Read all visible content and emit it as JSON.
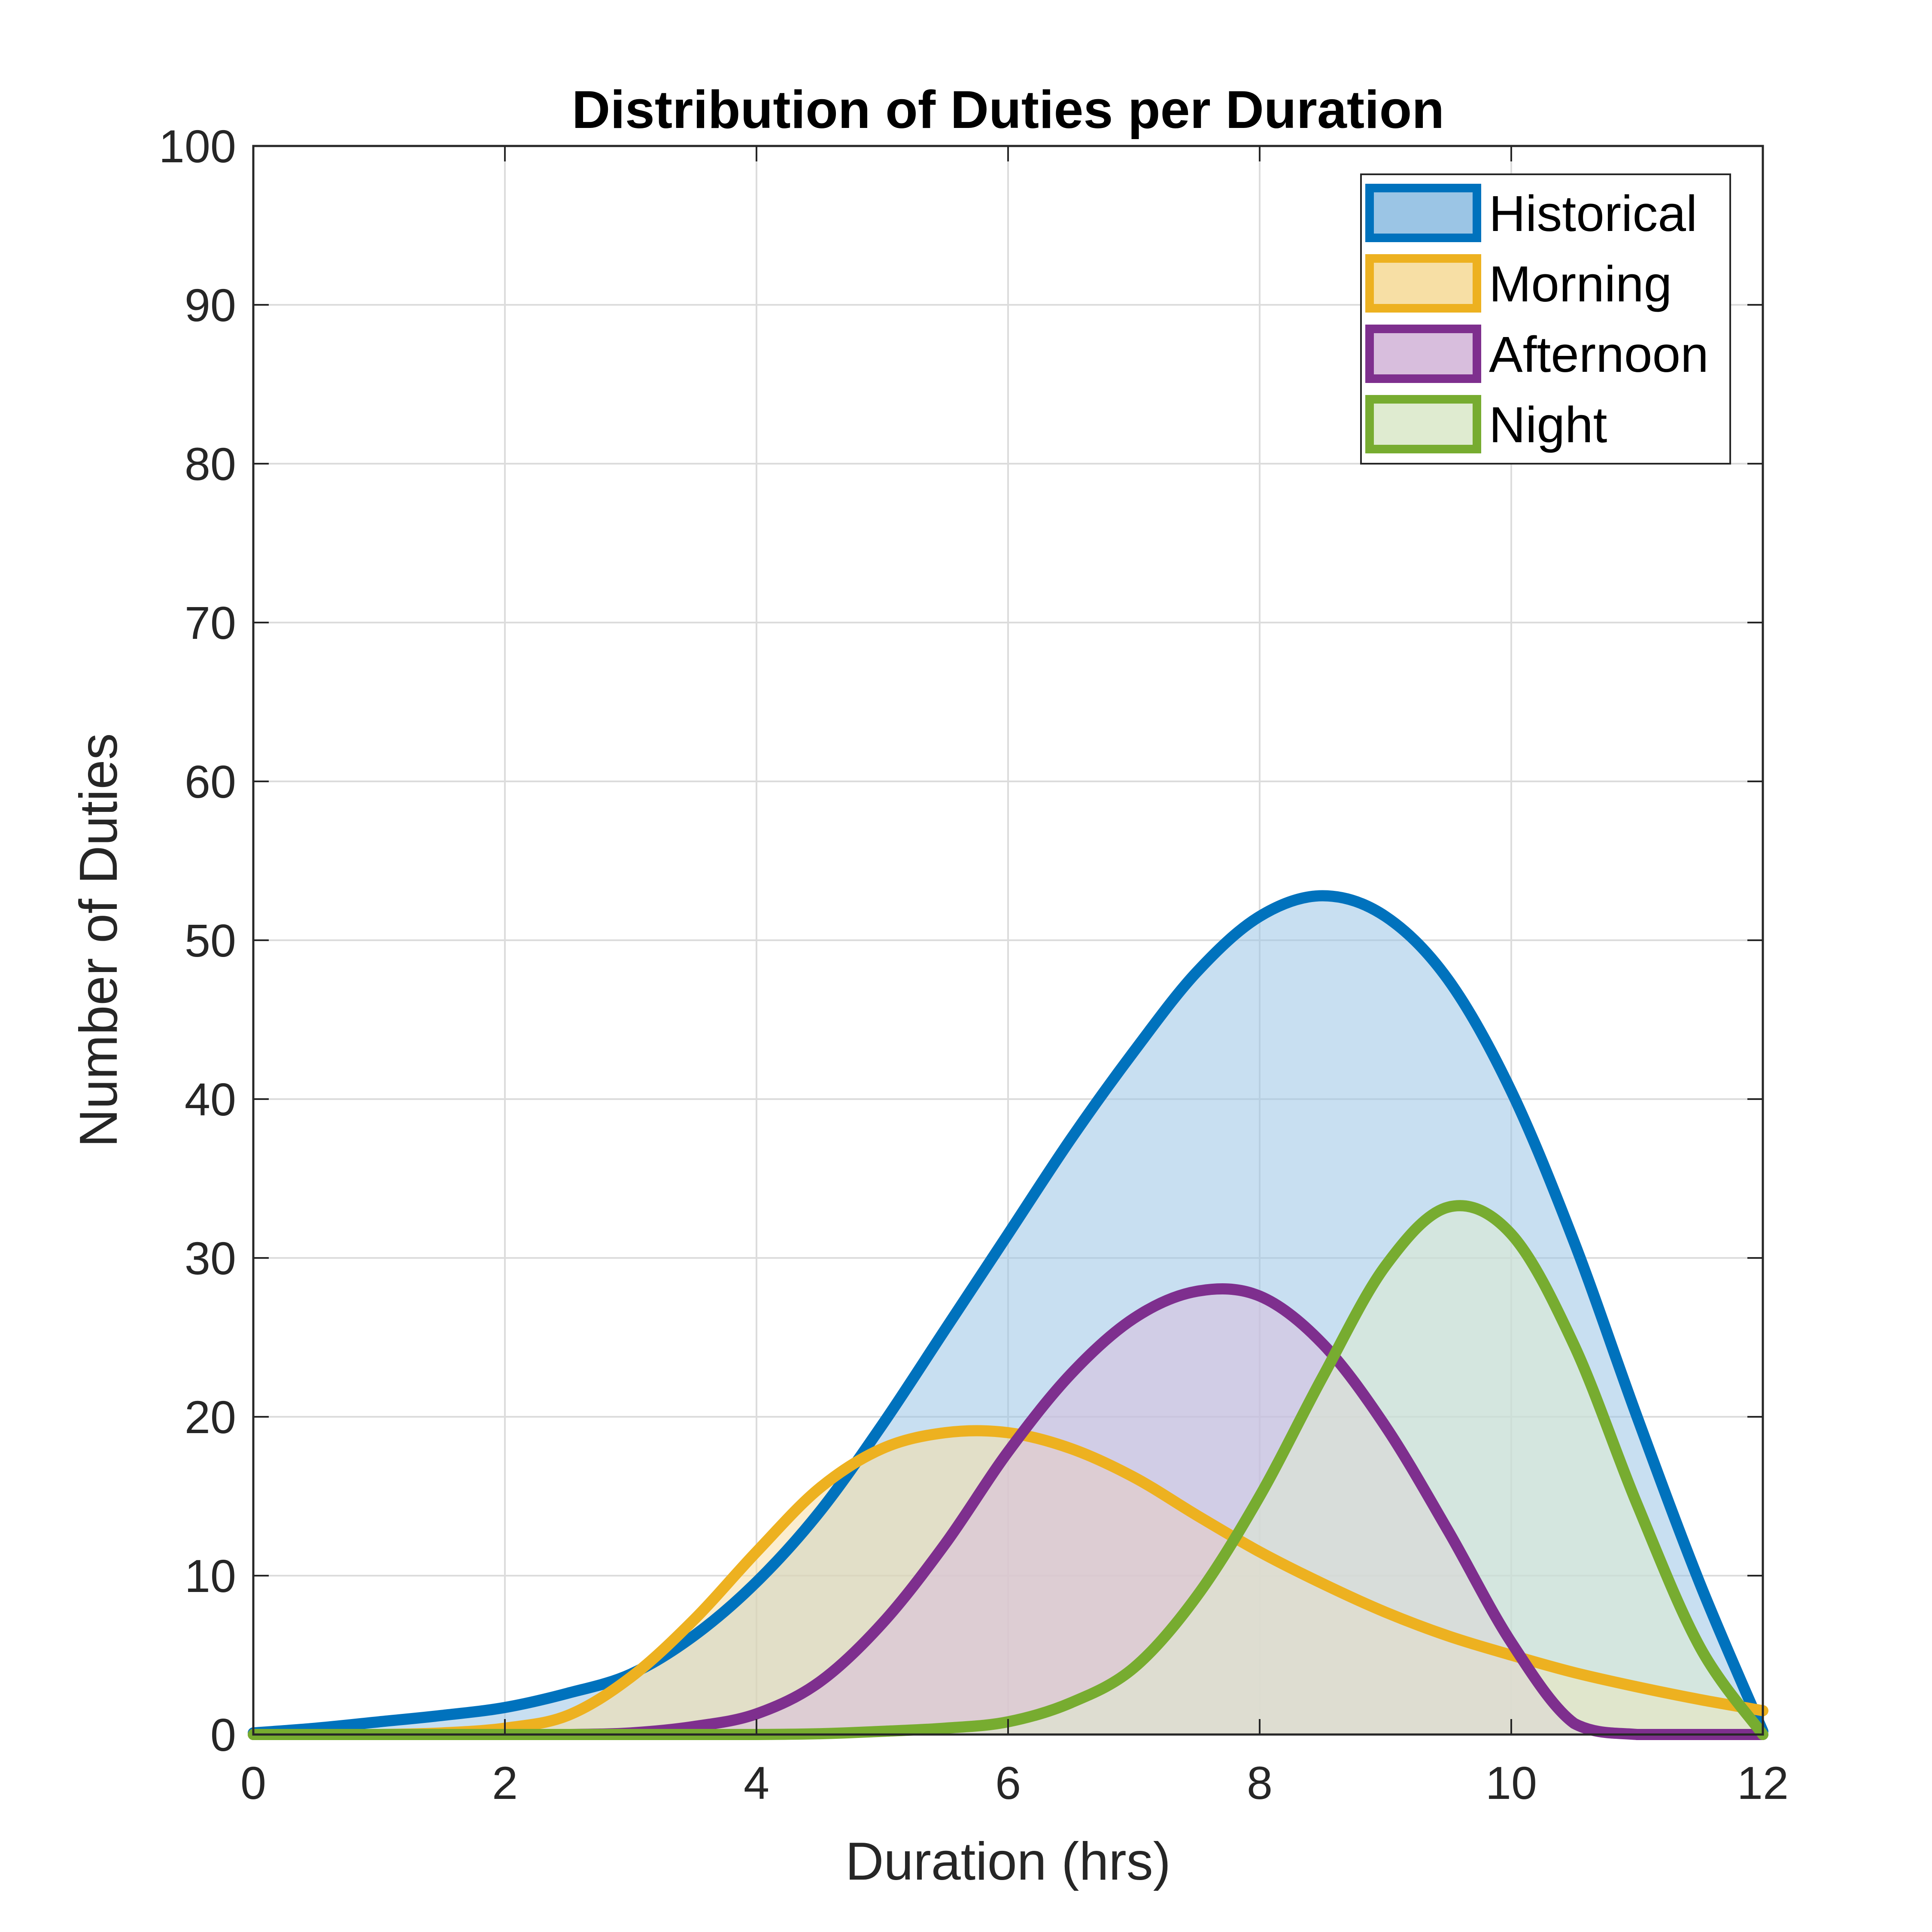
{
  "chart_data": {
    "type": "area",
    "title": "Distribution of Duties per Duration",
    "xlabel": "Duration (hrs)",
    "ylabel": "Number of Duties",
    "xlim": [
      0,
      12
    ],
    "ylim": [
      0,
      100
    ],
    "xticks": [
      0,
      2,
      4,
      6,
      8,
      10,
      12
    ],
    "yticks": [
      0,
      10,
      20,
      30,
      40,
      50,
      60,
      70,
      80,
      90,
      100
    ],
    "grid": true,
    "legend_position": "top-right",
    "x": [
      0,
      0.5,
      1,
      1.5,
      2,
      2.5,
      3,
      3.5,
      4,
      4.5,
      5,
      5.5,
      6,
      6.5,
      7,
      7.5,
      8,
      8.5,
      9,
      9.5,
      10,
      10.5,
      11,
      11.5,
      12
    ],
    "series": [
      {
        "name": "Historical",
        "color": "#0072BD",
        "fill": "#9BC5E5",
        "values": [
          0.1,
          0.4,
          0.8,
          1.2,
          1.7,
          2.6,
          3.8,
          6.2,
          9.6,
          14.0,
          19.5,
          25.5,
          31.5,
          37.5,
          43.0,
          48.0,
          51.5,
          52.8,
          51.5,
          47.5,
          40.5,
          31.0,
          20.0,
          9.5,
          0.2
        ]
      },
      {
        "name": "Morning",
        "color": "#EDB120",
        "fill": "#F7DFA5",
        "values": [
          0,
          0,
          0,
          0.1,
          0.4,
          1.2,
          3.6,
          7.2,
          11.5,
          15.5,
          18.0,
          19.0,
          19.0,
          18.0,
          16.2,
          13.8,
          11.5,
          9.5,
          7.7,
          6.2,
          5.0,
          3.9,
          3.0,
          2.2,
          1.5
        ]
      },
      {
        "name": "Afternoon",
        "color": "#7E2F8E",
        "fill": "#D8BEDD",
        "values": [
          0,
          0,
          0,
          0,
          0,
          0,
          0.1,
          0.5,
          1.3,
          3.3,
          7.0,
          12.0,
          17.8,
          22.7,
          26.2,
          27.9,
          27.6,
          24.6,
          19.4,
          12.8,
          5.8,
          0.7,
          0,
          0,
          0
        ]
      },
      {
        "name": "Night",
        "color": "#77AC30",
        "fill": "#DFEBD0",
        "values": [
          0,
          0,
          0,
          0,
          0,
          0,
          0,
          0,
          0,
          0.05,
          0.2,
          0.4,
          0.8,
          2.0,
          4.2,
          8.7,
          15.0,
          22.5,
          29.5,
          33.2,
          31.5,
          24.5,
          14.5,
          5.5,
          0
        ]
      }
    ]
  }
}
